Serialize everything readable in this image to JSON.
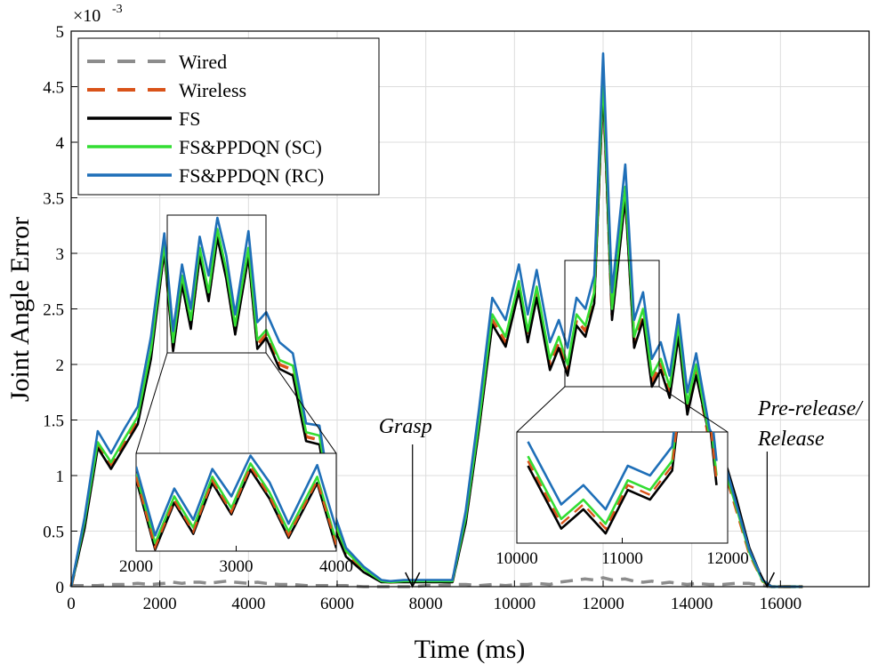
{
  "chart_data": {
    "type": "line",
    "title": "",
    "xlabel": "Time (ms)",
    "ylabel": "Joint Angle Error",
    "y_exponent_label": "×10",
    "y_exponent_power": "-3",
    "xlim": [
      0,
      18000
    ],
    "ylim": [
      0,
      5
    ],
    "grid": true,
    "legend_position": "top-left",
    "x_ticks": [
      0,
      2000,
      4000,
      6000,
      8000,
      10000,
      12000,
      14000,
      16000
    ],
    "x_tick_labels": [
      "0",
      "2000",
      "4000",
      "6000",
      "8000",
      "10000",
      "12000",
      "14000",
      "16000"
    ],
    "y_ticks": [
      0,
      0.5,
      1,
      1.5,
      2,
      2.5,
      3,
      3.5,
      4,
      4.5,
      5
    ],
    "y_tick_labels": [
      "0",
      "0.5",
      "1",
      "1.5",
      "2",
      "2.5",
      "3",
      "3.5",
      "4",
      "4.5",
      "5"
    ],
    "x": [
      0,
      300,
      600,
      900,
      1200,
      1500,
      1800,
      2100,
      2300,
      2500,
      2700,
      2900,
      3100,
      3300,
      3500,
      3700,
      4000,
      4200,
      4400,
      4700,
      5000,
      5300,
      5600,
      5900,
      6200,
      6600,
      7000,
      7200,
      7500,
      7700,
      8000,
      8300,
      8600,
      8900,
      9200,
      9500,
      9800,
      10100,
      10300,
      10500,
      10800,
      11000,
      11200,
      11400,
      11600,
      11800,
      12000,
      12200,
      12500,
      12700,
      12900,
      13100,
      13300,
      13500,
      13700,
      13900,
      14100,
      14400,
      14700,
      15000,
      15300,
      15600,
      15800,
      16100,
      16500
    ],
    "series": [
      {
        "name": "Wired",
        "color": "#8c8c8c",
        "style": "dashed",
        "values": [
          0.01,
          0.01,
          0.01,
          0.02,
          0.02,
          0.03,
          0.02,
          0.03,
          0.04,
          0.03,
          0.04,
          0.04,
          0.03,
          0.04,
          0.05,
          0.04,
          0.03,
          0.04,
          0.03,
          0.02,
          0.02,
          0.01,
          0.01,
          0.01,
          0.01,
          0.0,
          0.0,
          0.0,
          0.0,
          0.0,
          0.01,
          0.01,
          0.02,
          0.02,
          0.01,
          0.02,
          0.01,
          0.02,
          0.02,
          0.03,
          0.02,
          0.04,
          0.05,
          0.06,
          0.07,
          0.06,
          0.08,
          0.06,
          0.07,
          0.05,
          0.04,
          0.05,
          0.03,
          0.04,
          0.03,
          0.02,
          0.03,
          0.02,
          0.02,
          0.03,
          0.03,
          0.01,
          0.0,
          0.0,
          0.0
        ]
      },
      {
        "name": "Wireless",
        "color": "#d95319",
        "style": "dashed",
        "values": [
          0.0,
          0.55,
          1.28,
          1.1,
          1.3,
          1.5,
          2.1,
          3.05,
          2.15,
          2.75,
          2.35,
          3.0,
          2.6,
          3.18,
          2.8,
          2.3,
          3.0,
          2.18,
          2.27,
          2.0,
          1.95,
          1.35,
          1.32,
          0.6,
          0.3,
          0.15,
          0.05,
          0.04,
          0.05,
          0.05,
          0.05,
          0.05,
          0.05,
          0.6,
          1.45,
          2.4,
          2.2,
          2.7,
          2.25,
          2.65,
          2.0,
          2.2,
          1.95,
          2.4,
          2.3,
          2.6,
          4.55,
          2.45,
          3.55,
          2.2,
          2.45,
          1.85,
          2.0,
          1.75,
          2.3,
          1.6,
          1.95,
          1.3,
          1.1,
          0.7,
          0.3,
          0.05,
          0.0,
          0.0,
          0.0
        ]
      },
      {
        "name": "FS",
        "color": "#000000",
        "style": "solid",
        "values": [
          0.0,
          0.52,
          1.25,
          1.06,
          1.26,
          1.46,
          2.05,
          3.02,
          2.12,
          2.72,
          2.32,
          2.97,
          2.57,
          3.14,
          2.77,
          2.27,
          2.97,
          2.14,
          2.24,
          1.96,
          1.9,
          1.31,
          1.28,
          0.56,
          0.27,
          0.13,
          0.04,
          0.04,
          0.04,
          0.04,
          0.04,
          0.04,
          0.04,
          0.57,
          1.42,
          2.36,
          2.16,
          2.66,
          2.2,
          2.6,
          1.95,
          2.15,
          1.9,
          2.35,
          2.25,
          2.55,
          4.5,
          2.4,
          3.5,
          2.15,
          2.4,
          1.8,
          1.95,
          1.7,
          2.25,
          1.55,
          1.9,
          1.35,
          1.2,
          0.8,
          0.35,
          0.06,
          0.0,
          0.0,
          0.0
        ]
      },
      {
        "name": "FS&PPDQN (SC)",
        "color": "#33dd33",
        "style": "solid",
        "values": [
          0.0,
          0.58,
          1.3,
          1.12,
          1.33,
          1.53,
          2.13,
          3.08,
          2.2,
          2.8,
          2.4,
          3.05,
          2.65,
          3.22,
          2.85,
          2.35,
          3.05,
          2.22,
          2.31,
          2.04,
          1.99,
          1.39,
          1.36,
          0.63,
          0.32,
          0.16,
          0.05,
          0.04,
          0.05,
          0.05,
          0.05,
          0.05,
          0.05,
          0.62,
          1.48,
          2.45,
          2.25,
          2.75,
          2.3,
          2.7,
          2.05,
          2.25,
          2.0,
          2.45,
          2.35,
          2.65,
          4.6,
          2.5,
          3.6,
          2.25,
          2.5,
          1.9,
          2.05,
          1.8,
          2.35,
          1.65,
          2.0,
          1.35,
          1.12,
          0.72,
          0.31,
          0.05,
          0.0,
          0.0,
          0.0
        ]
      },
      {
        "name": "FS&PPDQN (RC)",
        "color": "#1f6fb8",
        "style": "solid",
        "values": [
          0.0,
          0.62,
          1.4,
          1.2,
          1.42,
          1.62,
          2.25,
          3.18,
          2.3,
          2.9,
          2.5,
          3.15,
          2.8,
          3.32,
          2.98,
          2.45,
          3.2,
          2.38,
          2.47,
          2.2,
          2.1,
          1.47,
          1.45,
          0.7,
          0.35,
          0.18,
          0.06,
          0.05,
          0.06,
          0.06,
          0.06,
          0.06,
          0.06,
          0.68,
          1.6,
          2.6,
          2.4,
          2.9,
          2.45,
          2.85,
          2.2,
          2.4,
          2.15,
          2.6,
          2.5,
          2.8,
          4.8,
          2.65,
          3.8,
          2.4,
          2.65,
          2.05,
          2.2,
          1.9,
          2.45,
          1.75,
          2.1,
          1.42,
          1.18,
          0.75,
          0.33,
          0.06,
          0.0,
          0.0,
          0.0
        ]
      }
    ],
    "zoom_boxes": [
      {
        "x_range": [
          2100,
          4200
        ],
        "y_range": [
          2.1,
          3.35
        ],
        "inset_ticks": [
          "2000",
          "3000",
          "4000"
        ]
      },
      {
        "x_range": [
          10400,
          12300
        ],
        "y_range": [
          1.8,
          2.95
        ],
        "inset_ticks": [
          "10000",
          "11000",
          "12000"
        ]
      }
    ],
    "annotations": [
      {
        "text": "Grasp",
        "x": 7700,
        "y": 0.0
      },
      {
        "text": "Pre-release/",
        "x": 15700,
        "y": 0.0
      },
      {
        "text": "Release",
        "x": 15700,
        "y": 0.0
      }
    ]
  }
}
